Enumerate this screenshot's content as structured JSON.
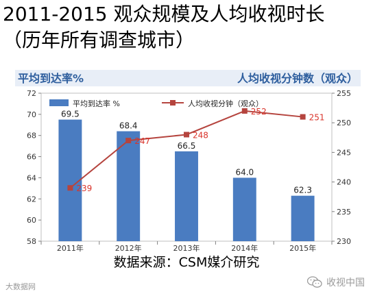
{
  "title_line1": "2011-2015 观众规模及人均收视时长",
  "title_line2": "（历年所有调查城市）",
  "source": "数据来源：CSM媒介研究",
  "watermark_left": "大数据网",
  "watermark_right": "收视中国",
  "chart_data": {
    "type": "bar+line",
    "categories": [
      "2011年",
      "2012年",
      "2013年",
      "2014年",
      "2015年"
    ],
    "left_axis_title": "平均到达率%",
    "right_axis_title": "人均收视分钟数（观众）",
    "ylim_left": [
      58,
      72
    ],
    "yticks_left": [
      "58",
      "60",
      "62",
      "64",
      "66",
      "68",
      "70",
      "72"
    ],
    "ylim_right": [
      230,
      255
    ],
    "yticks_right": [
      "230",
      "235",
      "240",
      "245",
      "250",
      "255"
    ],
    "series": [
      {
        "name": "平均到达率 %",
        "kind": "bar",
        "axis": "left",
        "values": [
          69.5,
          68.4,
          66.5,
          64.0,
          62.3
        ],
        "labels": [
          "69.5",
          "68.4",
          "66.5",
          "64.0",
          "62.3"
        ]
      },
      {
        "name": "人均收视分钟（观众）",
        "kind": "line",
        "axis": "right",
        "values": [
          239,
          247,
          248,
          252,
          251
        ],
        "labels": [
          "239",
          "247",
          "248",
          "252",
          "251"
        ]
      }
    ],
    "colors": {
      "bar": "#4a7cc1",
      "line": "#b5443e",
      "line_label": "#d9342b",
      "axis_title": "#2e5e9e",
      "axis_title_bg": "#e8eef7"
    },
    "legend_position": "top-left"
  }
}
